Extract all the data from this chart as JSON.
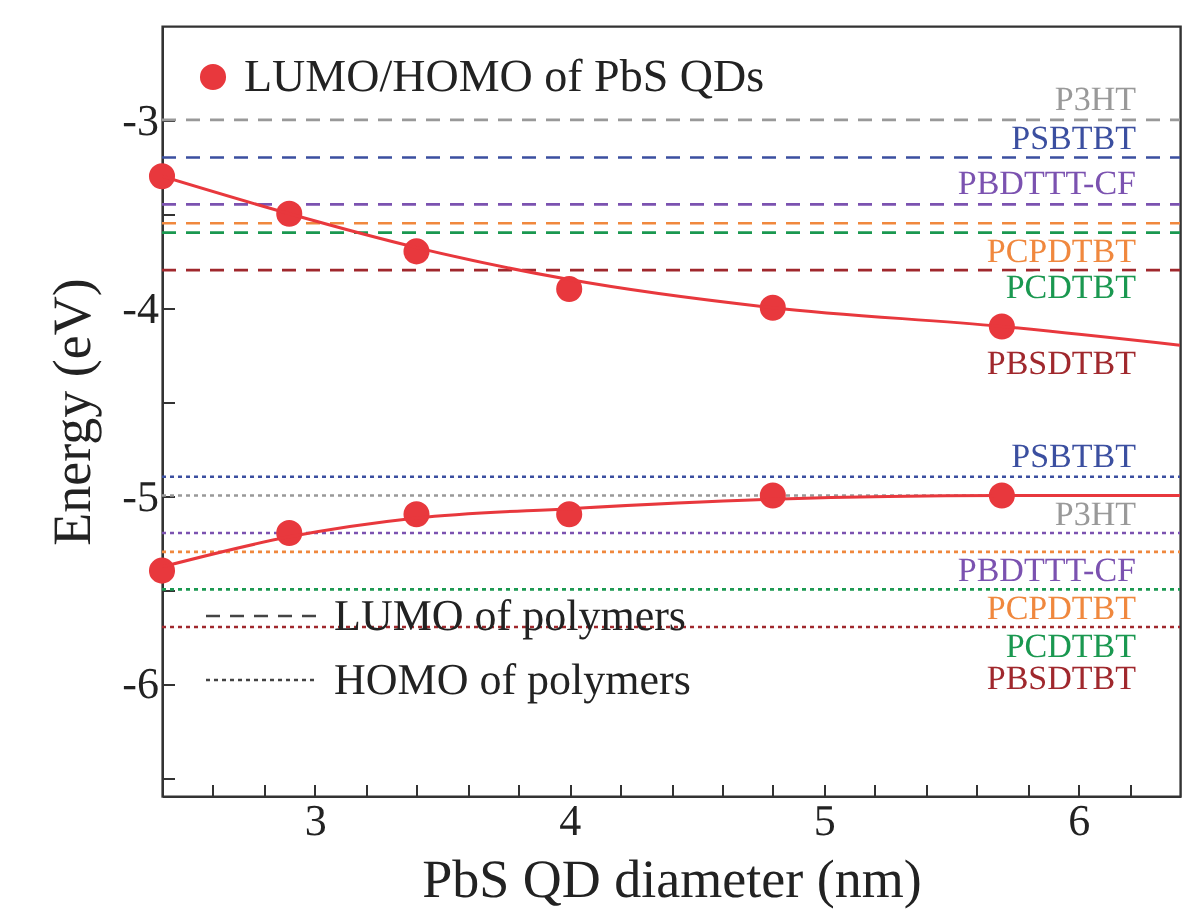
{
  "chart_data": {
    "type": "line",
    "xlabel": "PbS QD diameter (nm)",
    "ylabel": "Energy (eV)",
    "xlim": [
      2.4,
      6.4
    ],
    "ylim": [
      -6.6,
      -2.5
    ],
    "xticks": [
      {
        "value": 2.6,
        "label": null
      },
      {
        "value": 2.8,
        "label": null
      },
      3,
      {
        "value": 3.2,
        "label": null
      },
      {
        "value": 3.4,
        "label": null
      },
      {
        "value": 3.6,
        "label": null
      },
      {
        "value": 3.8,
        "label": null
      },
      4,
      {
        "value": 4.2,
        "label": null
      },
      {
        "value": 4.4,
        "label": null
      },
      {
        "value": 4.6,
        "label": null
      },
      {
        "value": 4.8,
        "label": null
      },
      5,
      {
        "value": 5.2,
        "label": null
      },
      {
        "value": 5.4,
        "label": null
      },
      {
        "value": 5.6,
        "label": null
      },
      {
        "value": 5.8,
        "label": null
      },
      6,
      {
        "value": 6.2,
        "label": null
      }
    ],
    "yticks": [
      {
        "value": -6.5,
        "label": null
      },
      -6,
      {
        "value": -5.5,
        "label": null
      },
      -5,
      {
        "value": -4.5,
        "label": null
      },
      -4,
      {
        "value": -3.5,
        "label": null
      },
      -3
    ],
    "grid": false,
    "legend": "top left",
    "series": [
      {
        "name": "LUMO/HOMO of PbS QDs",
        "type": "scatter",
        "marker": "circle",
        "color": "#e8383d",
        "x": [
          2.4,
          2.9,
          3.4,
          4.0,
          4.8,
          5.7,
          2.4,
          2.9,
          3.4,
          4.0,
          4.8,
          5.7
        ],
        "values": [
          -3.3,
          -3.5,
          -3.7,
          -3.9,
          -4.0,
          -4.1,
          -5.4,
          -5.2,
          -5.1,
          -5.1,
          -5.0,
          -5.0
        ]
      },
      {
        "color": "#e8383d",
        "x": [
          2.4,
          2.9,
          3.4,
          4.0,
          4.8,
          5.7,
          6.4
        ],
        "values": [
          -3.3,
          -3.5,
          -3.68,
          -3.85,
          -4.0,
          -4.1,
          -4.2
        ]
      },
      {
        "color": "#e8383d",
        "x": [
          2.4,
          2.9,
          3.4,
          4.0,
          4.8,
          5.7,
          6.4
        ],
        "values": [
          -5.38,
          -5.22,
          -5.12,
          -5.07,
          -5.02,
          -5.0,
          -5.0
        ]
      }
    ],
    "ref_lines": [
      {
        "axis": "y",
        "value": -3.0,
        "label": "P3HT",
        "color": "#999999",
        "line_style": "dashed"
      },
      {
        "axis": "y",
        "value": -3.2,
        "label": "PSBTBT",
        "color": "#3b4fa0",
        "line_style": "dashed"
      },
      {
        "axis": "y",
        "value": -3.45,
        "label": "PBDTTT-CF",
        "color": "#7b52b0",
        "line_style": "dashed"
      },
      {
        "axis": "y",
        "value": -3.55,
        "label": "PCPDTBT",
        "color": "#f0883e",
        "line_style": "dashed"
      },
      {
        "axis": "y",
        "value": -3.6,
        "label": "PCDTBT",
        "color": "#1a9850",
        "line_style": "dashed"
      },
      {
        "axis": "y",
        "value": -3.8,
        "label": "PBSDTBT",
        "color": "#a0282d",
        "line_style": "dashed"
      },
      {
        "axis": "y",
        "value": -4.9,
        "label": "PSBTBT",
        "color": "#3b4fa0",
        "line_style": "dotted"
      },
      {
        "axis": "y",
        "value": -5.0,
        "label": "P3HT",
        "color": "#999999",
        "line_style": "dotted"
      },
      {
        "axis": "y",
        "value": -5.2,
        "label": "PBDTTT-CF",
        "color": "#7b52b0",
        "line_style": "dotted"
      },
      {
        "axis": "y",
        "value": -5.3,
        "label": "PCPDTBT",
        "color": "#f0883e",
        "line_style": "dotted"
      },
      {
        "axis": "y",
        "value": -5.5,
        "label": "PCDTBT",
        "color": "#1a9850",
        "line_style": "dotted"
      },
      {
        "axis": "y",
        "value": -5.7,
        "label": "PBSDTBT",
        "color": "#a0282d",
        "line_style": "dotted"
      }
    ],
    "annotations": [
      "LUMO of polymers",
      "HOMO of polymers"
    ]
  }
}
